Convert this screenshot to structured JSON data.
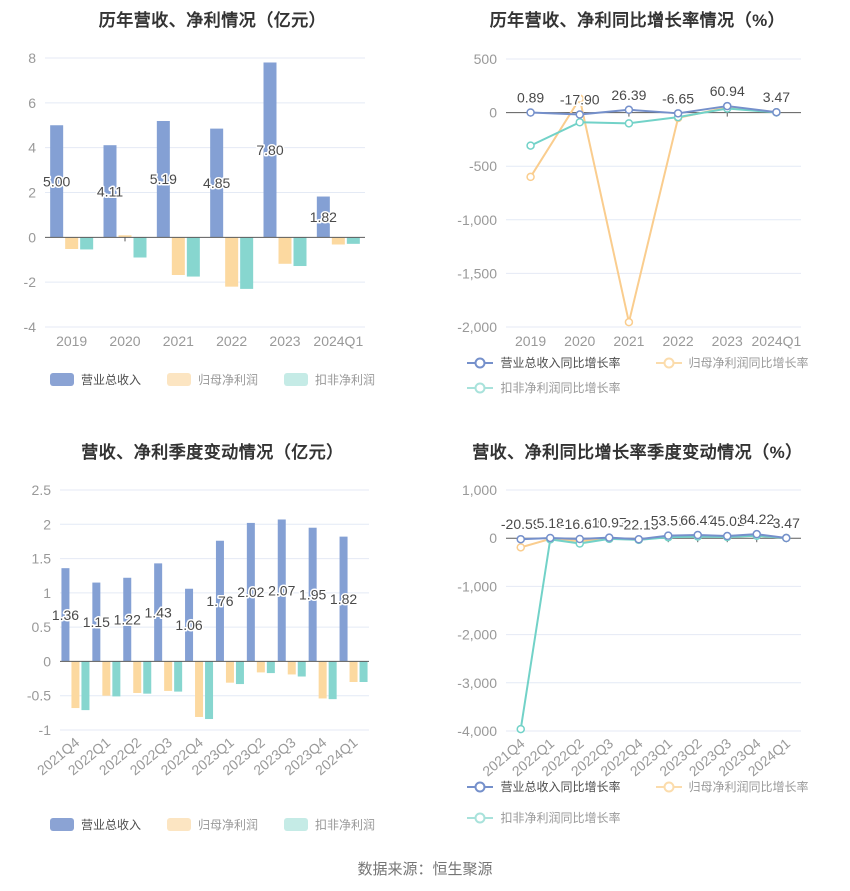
{
  "footer": {
    "source_text": "数据来源：恒生聚源"
  },
  "colors": {
    "background": "#ffffff",
    "grid_line": "#E4EAF5",
    "zero_axis": "#5B5B5B",
    "axis_label": "#999999",
    "value_label": "#4A4A4A",
    "title": "#333333",
    "footer_text": "#757575",
    "bar_blue": "#84A0D4",
    "bar_orange": "#FCD9A0",
    "bar_teal": "#87D6CF",
    "line_blue": "#7590CB",
    "line_orange": "#FACD8E",
    "line_teal": "#72D2C8"
  },
  "chart_data": [
    {
      "type": "bar",
      "title": "历年营收、净利情况（亿元）",
      "categories": [
        "2019",
        "2020",
        "2021",
        "2022",
        "2023",
        "2024Q1"
      ],
      "series": [
        {
          "key": "revenue",
          "name": "营业总收入",
          "color": "#84A0D4",
          "legend_color": "#8BA3D4",
          "values": [
            5.0,
            4.11,
            5.19,
            4.85,
            7.8,
            1.82
          ],
          "labels": [
            "5.00",
            "4.11",
            "5.19",
            "4.85",
            "7.80",
            "1.82"
          ]
        },
        {
          "key": "parent-net-profit",
          "name": "归母净利润",
          "color": "#FCD9A0",
          "legend_color": "#FCE5C2",
          "values": [
            -0.52,
            0.09,
            -1.68,
            -2.2,
            -1.18,
            -0.32
          ]
        },
        {
          "key": "non-gaap-net-profit",
          "name": "扣非净利润",
          "color": "#87D6CF",
          "legend_color": "#C5EBE6",
          "values": [
            -0.54,
            -0.9,
            -1.75,
            -2.3,
            -1.28,
            -0.29
          ]
        }
      ],
      "y_axis": {
        "labels": [
          "8",
          "6",
          "4",
          "2",
          "0",
          "-2",
          "-4"
        ],
        "values": [
          8,
          6,
          4,
          2,
          0,
          -2,
          -4
        ]
      },
      "ylim": [
        -4,
        8
      ],
      "legend_position": "bottom",
      "grid": true
    },
    {
      "type": "line",
      "title": "历年营收、净利同比增长率情况（%）",
      "categories": [
        "2019",
        "2020",
        "2021",
        "2022",
        "2023",
        "2024Q1"
      ],
      "series": [
        {
          "key": "revenue-growth",
          "name": "营业总收入同比增长率",
          "color": "#7590CB",
          "legend_color": "#7590CB",
          "values": [
            0.89,
            -17.9,
            26.39,
            -6.65,
            60.94,
            3.47
          ],
          "labels": [
            "0.89",
            "-17.90",
            "26.39",
            "-6.65",
            "60.94",
            "3.47"
          ]
        },
        {
          "key": "parent-net-profit-growth",
          "name": "归母净利润同比增长率",
          "color": "#FACD8E",
          "legend_color": "#FBDCAC",
          "values": [
            -600,
            130,
            -1955,
            -50,
            50,
            3
          ]
        },
        {
          "key": "non-gaap-net-profit-growth",
          "name": "扣非净利润同比增长率",
          "color": "#72D2C8",
          "legend_color": "#A8E2DB",
          "values": [
            -308,
            -90,
            -100,
            -42,
            38,
            2
          ]
        }
      ],
      "y_axis": {
        "labels": [
          "500",
          "0",
          "-500",
          "-1,000",
          "-1,500",
          "-2,000"
        ],
        "values": [
          500,
          0,
          -500,
          -1000,
          -1500,
          -2000
        ]
      },
      "ylim": [
        -2000,
        500
      ],
      "legend_position": "bottom",
      "grid": true
    },
    {
      "type": "bar",
      "title": "营收、净利季度变动情况（亿元）",
      "categories": [
        "2021Q4",
        "2022Q1",
        "2022Q2",
        "2022Q3",
        "2022Q4",
        "2023Q1",
        "2023Q2",
        "2023Q3",
        "2023Q4",
        "2024Q1"
      ],
      "series": [
        {
          "key": "revenue",
          "name": "营业总收入",
          "color": "#84A0D4",
          "legend_color": "#8BA3D4",
          "values": [
            1.36,
            1.15,
            1.22,
            1.43,
            1.06,
            1.76,
            2.02,
            2.07,
            1.95,
            1.82
          ],
          "labels": [
            "1.36",
            "1.15",
            "1.22",
            "1.43",
            "1.06",
            "1.76",
            "2.02",
            "2.07",
            "1.95",
            "1.82"
          ]
        },
        {
          "key": "parent-net-profit",
          "name": "归母净利润",
          "color": "#FCD9A0",
          "legend_color": "#FCE5C2",
          "values": [
            -0.68,
            -0.5,
            -0.46,
            -0.43,
            -0.81,
            -0.31,
            -0.16,
            -0.19,
            -0.54,
            -0.3
          ]
        },
        {
          "key": "non-gaap-net-profit",
          "name": "扣非净利润",
          "color": "#87D6CF",
          "legend_color": "#C5EBE6",
          "values": [
            -0.71,
            -0.51,
            -0.47,
            -0.44,
            -0.84,
            -0.33,
            -0.17,
            -0.22,
            -0.55,
            -0.3
          ]
        }
      ],
      "y_axis": {
        "labels": [
          "2.5",
          "2",
          "1.5",
          "1",
          "0.5",
          "0",
          "-0.5",
          "-1"
        ],
        "values": [
          2.5,
          2,
          1.5,
          1,
          0.5,
          0,
          -0.5,
          -1
        ]
      },
      "ylim": [
        -1,
        2.5
      ],
      "legend_position": "bottom",
      "grid": true
    },
    {
      "type": "line",
      "title": "营收、净利同比增长率季度变动情况（%）",
      "categories": [
        "2021Q4",
        "2022Q1",
        "2022Q2",
        "2022Q3",
        "2022Q4",
        "2023Q1",
        "2023Q2",
        "2023Q3",
        "2023Q4",
        "2024Q1"
      ],
      "series": [
        {
          "key": "revenue-growth",
          "name": "营业总收入同比增长率",
          "color": "#7590CB",
          "legend_color": "#7590CB",
          "values": [
            -20.59,
            5.18,
            -16.63,
            10.97,
            -22.15,
            53.51,
            66.42,
            45.02,
            84.22,
            3.47
          ],
          "labels": [
            "-20.59",
            "5.18",
            "-16.63",
            "10.97",
            "-22.15",
            "53.51",
            "66.42",
            "45.02",
            "84.22",
            "3.47"
          ]
        },
        {
          "key": "parent-net-profit-growth",
          "name": "归母净利润同比增长率",
          "color": "#FACD8E",
          "legend_color": "#FBDCAC",
          "values": [
            -190,
            -15,
            -60,
            -10,
            -30,
            25,
            40,
            30,
            55,
            5
          ]
        },
        {
          "key": "non-gaap-net-profit-growth",
          "name": "扣非净利润同比增长率",
          "color": "#72D2C8",
          "legend_color": "#A8E2DB",
          "values": [
            -3960,
            -25,
            -110,
            -15,
            -35,
            20,
            35,
            25,
            50,
            3
          ]
        }
      ],
      "y_axis": {
        "labels": [
          "1,000",
          "0",
          "-1,000",
          "-2,000",
          "-3,000",
          "-4,000"
        ],
        "values": [
          1000,
          0,
          -1000,
          -2000,
          -3000,
          -4000
        ]
      },
      "ylim": [
        -4000,
        1000
      ],
      "legend_position": "bottom",
      "grid": true
    }
  ]
}
